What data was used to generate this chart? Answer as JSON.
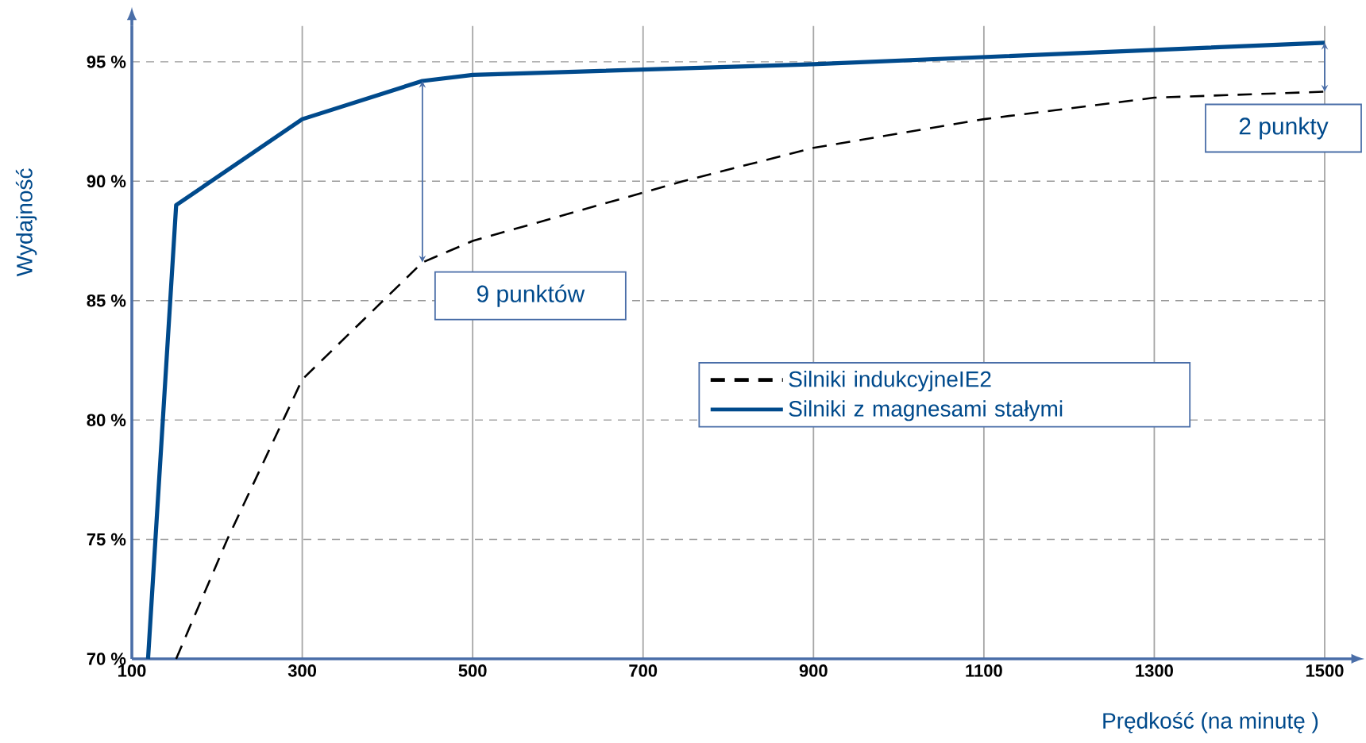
{
  "chart_data": {
    "type": "line",
    "xlabel": "Prędkość (na minutę )",
    "ylabel": "Wydajność",
    "xlim": [
      100,
      1500
    ],
    "ylim": [
      70,
      96.5
    ],
    "xticks": [
      100,
      300,
      500,
      700,
      900,
      1100,
      1300,
      1500
    ],
    "yticks": [
      {
        "value": 70,
        "label": "70 %"
      },
      {
        "value": 75,
        "label": "75 %"
      },
      {
        "value": 80,
        "label": "80 %"
      },
      {
        "value": 85,
        "label": "85 %"
      },
      {
        "value": 90,
        "label": "90 %"
      },
      {
        "value": 95,
        "label": "95 %"
      }
    ],
    "grid": true,
    "legend": "right",
    "marker": "none",
    "series": [
      {
        "name": "Silniki indukcyjneIE2",
        "color": "#000000",
        "line_style": "dashed",
        "x": [
          152,
          212,
          300,
          441,
          500,
          747,
          900,
          1100,
          1300,
          1500
        ],
        "values": [
          70,
          75,
          81.7,
          86.6,
          87.5,
          90,
          91.4,
          92.6,
          93.5,
          93.75
        ]
      },
      {
        "name": "Silniki z magnesami stałymi",
        "color": "#004a8c",
        "line_style": "solid",
        "x": [
          119,
          152,
          300,
          441,
          500,
          900,
          1500
        ],
        "values": [
          70,
          89,
          92.6,
          94.2,
          94.45,
          94.9,
          95.8
        ]
      }
    ],
    "annotations": [
      {
        "text": "9 punktów",
        "x": 441,
        "y": 86.6
      },
      {
        "text": "2 punkty",
        "x": 1500,
        "y": 93.75
      }
    ]
  }
}
